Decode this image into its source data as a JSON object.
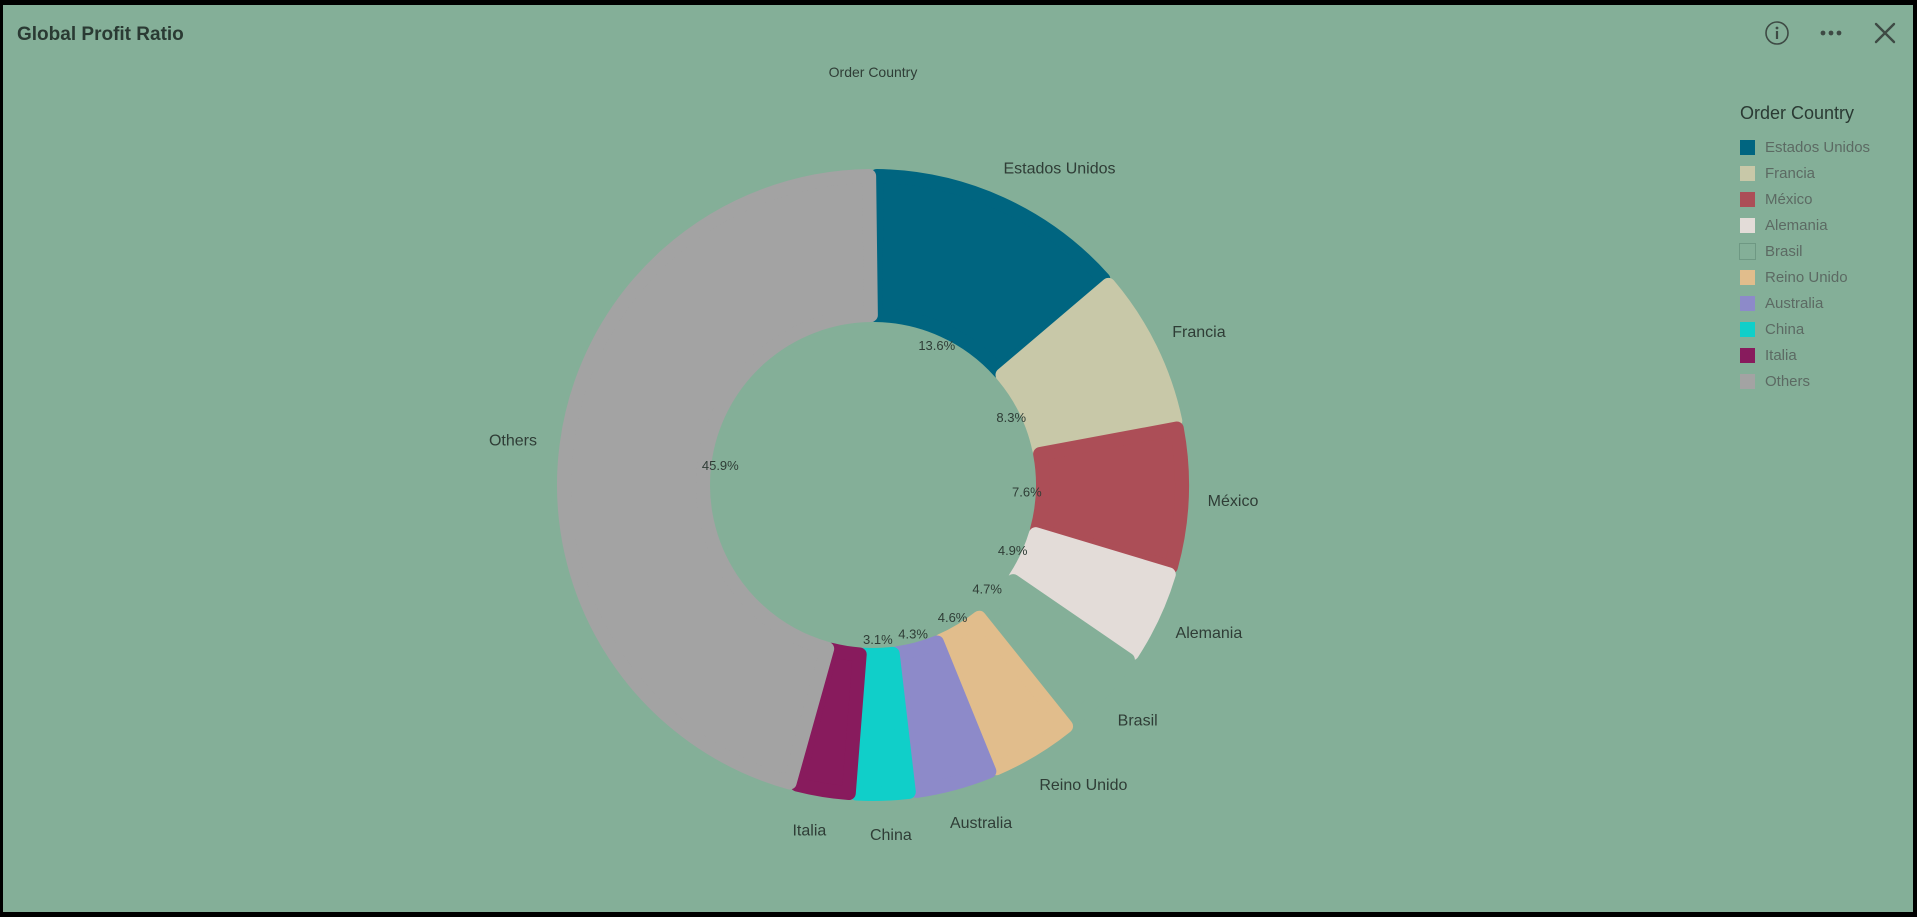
{
  "header": {
    "title": "Global Profit Ratio"
  },
  "toolbar": {
    "info_icon": "info-icon",
    "more_icon": "more-options-icon",
    "close_icon": "close-icon"
  },
  "chart_data": {
    "type": "pie",
    "variant": "donut",
    "title": "Order Country",
    "dimension": "Order Country",
    "measure": "Profit Ratio",
    "legend_title": "Order Country",
    "legend_position": "right",
    "slices": [
      {
        "label": "Estados Unidos",
        "value": 13.6,
        "value_label": "13.6%",
        "color": "#006580"
      },
      {
        "label": "Francia",
        "value": 8.3,
        "value_label": "8.3%",
        "color": "#c8c8a8"
      },
      {
        "label": "México",
        "value": 7.6,
        "value_label": "7.6%",
        "color": "#ac4e57"
      },
      {
        "label": "Alemania",
        "value": 4.9,
        "value_label": "4.9%",
        "color": "#e3dcd8"
      },
      {
        "label": "Brasil",
        "value": 4.7,
        "value_label": "4.7%",
        "color": "#84af98"
      },
      {
        "label": "Reino Unido",
        "value": 4.6,
        "value_label": "4.6%",
        "color": "#e1bd8c"
      },
      {
        "label": "Australia",
        "value": 4.3,
        "value_label": "4.3%",
        "color": "#8d8ac9"
      },
      {
        "label": "China",
        "value": 3.1,
        "value_label": "3.1%",
        "color": "#10cfc9"
      },
      {
        "label": "Italia",
        "value": 3.1,
        "value_label": "",
        "color": "#881b5d"
      },
      {
        "label": "Others",
        "value": 45.9,
        "value_label": "45.9%",
        "color": "#a3a3a3"
      }
    ]
  }
}
